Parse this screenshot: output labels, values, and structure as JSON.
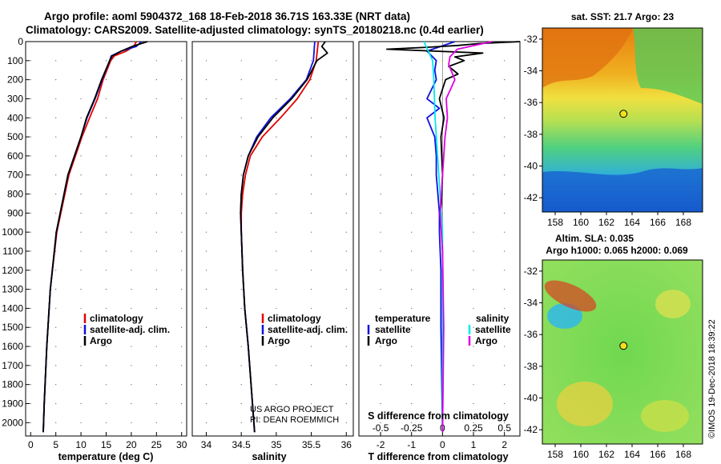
{
  "header": {
    "title_line1": "Argo profile: aoml 5904372_168 18-Feb-2018 36.71S 163.33E (NRT data)",
    "title_line2": "Climatology: CARS2009. Satellite-adjusted climatology: synTS_20180218.nc (0.4d earlier)"
  },
  "colors": {
    "climatology": "#e00000",
    "satellite": "#1010e0",
    "argo": "#000000",
    "satellite_s": "#00e8f0",
    "argo_s": "#e000e0"
  },
  "chart_data": [
    {
      "type": "line",
      "id": "temperature",
      "xlabel": "temperature (deg C)",
      "ylabel": "depth",
      "xlim": [
        -1,
        31
      ],
      "ylim": [
        2070,
        0
      ],
      "xticks": [
        0,
        5,
        10,
        15,
        20,
        25,
        30
      ],
      "yticks": [
        0,
        100,
        200,
        300,
        400,
        500,
        600,
        700,
        800,
        900,
        1000,
        1100,
        1200,
        1300,
        1400,
        1500,
        1600,
        1700,
        1800,
        1900,
        2000
      ],
      "legend": [
        "climatology",
        "satellite-adj. clim.",
        "Argo"
      ],
      "series": [
        {
          "name": "climatology",
          "depth": [
            0,
            25,
            50,
            75,
            100,
            200,
            300,
            400,
            500,
            700,
            1000,
            1300,
            1600,
            1900,
            2050
          ],
          "values": [
            21,
            20.5,
            19,
            16.6,
            15.9,
            14.4,
            13.3,
            11.7,
            10.2,
            7.6,
            5.2,
            3.9,
            3.2,
            2.7,
            2.5
          ]
        },
        {
          "name": "satellite-adj. clim.",
          "depth": [
            0,
            25,
            50,
            75,
            100,
            200,
            300,
            400,
            500,
            700,
            1000,
            1300,
            1600,
            1900,
            2050
          ],
          "values": [
            22,
            21,
            18,
            16,
            15.7,
            14.2,
            12.8,
            11.2,
            10,
            7.4,
            5.1,
            3.9,
            3.2,
            2.7,
            2.5
          ]
        },
        {
          "name": "Argo",
          "depth": [
            0,
            10,
            25,
            50,
            75,
            100,
            200,
            300,
            400,
            500,
            700,
            1000,
            1300,
            1600,
            1900,
            2050
          ],
          "values": [
            23.2,
            22,
            20.2,
            18,
            16.2,
            15.7,
            14.1,
            12.7,
            11.1,
            10,
            7.4,
            5.1,
            3.9,
            3.2,
            2.7,
            2.5
          ]
        }
      ]
    },
    {
      "type": "line",
      "id": "salinity",
      "xlabel": "salinity",
      "ylabel": "depth",
      "xlim": [
        33.8,
        36.1
      ],
      "ylim": [
        2070,
        0
      ],
      "xticks": [
        34,
        34.5,
        35,
        35.5,
        36
      ],
      "xtick_labels": [
        "34",
        "34.5",
        "35",
        "35.5",
        "36"
      ],
      "legend": [
        "climatology",
        "satellite-adj. clim.",
        "Argo"
      ],
      "series": [
        {
          "name": "climatology",
          "depth": [
            0,
            100,
            200,
            300,
            400,
            500,
            600,
            700,
            800,
            900,
            1000,
            1200,
            1400,
            1600,
            1800,
            2000,
            2050
          ],
          "values": [
            35.6,
            35.57,
            35.48,
            35.3,
            35.06,
            34.8,
            34.63,
            34.56,
            34.52,
            34.5,
            34.5,
            34.52,
            34.55,
            34.6,
            34.64,
            34.68,
            34.69
          ]
        },
        {
          "name": "satellite-adj. clim.",
          "depth": [
            0,
            100,
            200,
            300,
            400,
            500,
            600,
            700,
            800,
            900,
            1000,
            1200,
            1400,
            1600,
            1800,
            2000,
            2050
          ],
          "values": [
            35.55,
            35.53,
            35.43,
            35.2,
            34.92,
            34.72,
            34.6,
            34.53,
            34.5,
            34.49,
            34.5,
            34.52,
            34.55,
            34.6,
            34.64,
            34.68,
            34.69
          ]
        },
        {
          "name": "Argo",
          "depth": [
            0,
            25,
            60,
            100,
            200,
            300,
            400,
            500,
            600,
            700,
            800,
            900,
            1000,
            1200,
            1400,
            1600,
            1800,
            2000,
            2050
          ],
          "values": [
            35.7,
            35.65,
            35.73,
            35.58,
            35.44,
            35.22,
            34.95,
            34.74,
            34.6,
            34.53,
            34.5,
            34.49,
            34.5,
            34.52,
            34.55,
            34.6,
            34.64,
            34.68,
            34.69
          ]
        }
      ],
      "annotation_line1": "US ARGO PROJECT",
      "annotation_line2": "PI: DEAN ROEMMICH"
    },
    {
      "type": "line",
      "id": "difference",
      "xlabel": "T difference from climatology",
      "xlabel_top": "S difference from climatology",
      "xlim": [
        -2.7,
        2.5
      ],
      "ylim": [
        2070,
        0
      ],
      "xticks": [
        -2,
        -1,
        0,
        1,
        2
      ],
      "xticks_top": [
        -0.5,
        -0.25,
        0,
        0.25,
        0.5
      ],
      "xtick_labels_top": [
        "-0.5",
        "-0.25",
        "0",
        "0.25",
        "0.5"
      ],
      "legend_left_title": "temperature",
      "legend_left": [
        "satellite",
        "Argo"
      ],
      "legend_right_title": "salinity",
      "legend_right": [
        "satellite",
        "Argo"
      ],
      "series": [
        {
          "name": "temperature satellite",
          "depth": [
            0,
            50,
            100,
            150,
            200,
            300,
            350,
            400,
            500,
            600,
            700,
            800,
            900,
            1000,
            1200,
            1500,
            2050
          ],
          "values": [
            0.4,
            -0.5,
            -0.2,
            -0.25,
            -0.2,
            -0.5,
            -0.1,
            -0.5,
            -0.25,
            -0.2,
            -0.2,
            -0.15,
            -0.1,
            -0.1,
            -0.05,
            -0.05,
            0
          ]
        },
        {
          "name": "temperature Argo",
          "depth": [
            0,
            10,
            20,
            30,
            40,
            60,
            80,
            100,
            130,
            170,
            200,
            300,
            400,
            500,
            700,
            900,
            1100,
            1500,
            2050
          ],
          "values": [
            2.5,
            1.2,
            0.5,
            -0.5,
            -1.8,
            1.3,
            0.4,
            0.7,
            0.2,
            0.5,
            0.1,
            -0.1,
            0.05,
            -0.05,
            0,
            -0.05,
            0,
            0.02,
            0
          ]
        },
        {
          "name": "salinity satellite",
          "depth": [
            0,
            100,
            200,
            400,
            600,
            800,
            1000,
            1400,
            2050
          ],
          "values": [
            -0.15,
            -0.08,
            -0.07,
            -0.06,
            -0.04,
            -0.02,
            0.0,
            0.0,
            0
          ]
        },
        {
          "name": "salinity Argo",
          "depth": [
            0,
            40,
            80,
            120,
            200,
            300,
            400,
            500,
            700,
            900,
            1100,
            1500,
            2050
          ],
          "values": [
            0.4,
            0.12,
            0.06,
            0.05,
            0.1,
            0.03,
            0.04,
            0.02,
            0,
            -0.02,
            0,
            0.01,
            0
          ]
        }
      ]
    },
    {
      "type": "heatmap",
      "id": "sst_map",
      "title": "sat. SST: 21.7 Argo: 23",
      "xticks": [
        158,
        160,
        162,
        164,
        166,
        168
      ],
      "yticks": [
        -32,
        -34,
        -36,
        -38,
        -40,
        -42
      ],
      "marker": [
        163.33,
        -36.71
      ]
    },
    {
      "type": "heatmap",
      "id": "sla_map",
      "title_line1": "Altim. SLA: 0.035",
      "title_line2": "Argo h1000: 0.065 h2000: 0.069",
      "xticks": [
        158,
        160,
        162,
        164,
        166,
        168
      ],
      "yticks": [
        -32,
        -34,
        -36,
        -38,
        -40,
        -42
      ],
      "marker": [
        163.33,
        -36.71
      ]
    }
  ],
  "credit": "©IMOS 19-Dec-2018 18:39:22"
}
